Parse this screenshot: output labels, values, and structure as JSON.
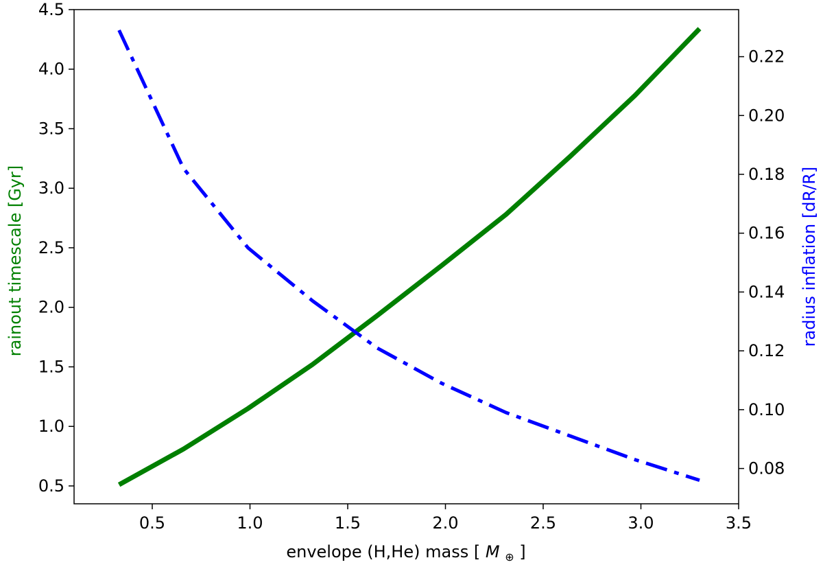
{
  "chart_data": {
    "type": "line",
    "title": "",
    "xlabel": "envelope (H,He) mass",
    "xlabel_unit_symbol": "M",
    "xlabel_unit_subscript": "⊕",
    "ylabel_left": "rainout timescale [Gyr]",
    "ylabel_right": "radius inflation [dR/R]",
    "xlim": [
      0.1,
      3.5
    ],
    "ylim_left": [
      0.35,
      4.5
    ],
    "ylim_right": [
      0.068,
      0.236
    ],
    "xticks": [
      "0.5",
      "1.0",
      "1.5",
      "2.0",
      "2.5",
      "3.0",
      "3.5"
    ],
    "yticks_left": [
      "0.5",
      "1.0",
      "1.5",
      "2.0",
      "2.5",
      "3.0",
      "3.5",
      "4.0",
      "4.5"
    ],
    "yticks_right": [
      "0.08",
      "0.10",
      "0.12",
      "0.14",
      "0.16",
      "0.18",
      "0.20",
      "0.22"
    ],
    "grid": false,
    "legend": "none",
    "series": [
      {
        "axis": "left",
        "color": "#007f00",
        "style": "solid",
        "x": [
          0.33,
          0.66,
          0.99,
          1.32,
          1.65,
          1.98,
          2.31,
          2.64,
          2.97,
          3.3
        ],
        "values": [
          0.51,
          0.81,
          1.15,
          1.52,
          1.93,
          2.35,
          2.78,
          3.27,
          3.78,
          4.34
        ]
      },
      {
        "axis": "right",
        "color": "#0000ff",
        "style": "dashdot",
        "x": [
          0.33,
          0.66,
          0.99,
          1.32,
          1.65,
          1.98,
          2.31,
          2.64,
          2.97,
          3.3
        ],
        "values": [
          0.229,
          0.182,
          0.155,
          0.137,
          0.121,
          0.109,
          0.099,
          0.091,
          0.083,
          0.076
        ]
      }
    ]
  }
}
